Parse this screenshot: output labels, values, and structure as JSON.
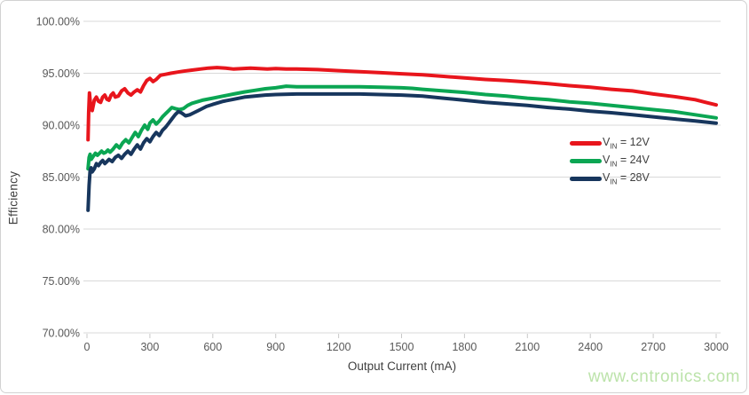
{
  "page": {
    "watermark": "www.cntronics.com"
  },
  "chart_data": {
    "type": "line",
    "title": "",
    "xlabel": "Output Current (mA)",
    "ylabel": "Efficiency",
    "xlim": [
      0,
      3000
    ],
    "ylim": [
      70,
      100
    ],
    "grid": "horizontal",
    "grid_color": "#d9d9d9",
    "tick_color": "#c8c8c8",
    "tick_label_color": "#595959",
    "legend_position": "inside-right-middle",
    "x_ticks": [
      0,
      300,
      600,
      900,
      1200,
      1500,
      1800,
      2100,
      2400,
      2700,
      3000
    ],
    "y_ticks": [
      100,
      95,
      90,
      85,
      80,
      75,
      70
    ],
    "y_tick_labels": [
      "100.00%",
      "95.00%",
      "90.00%",
      "85.00%",
      "80.00%",
      "75.00%",
      "70.00%"
    ],
    "series": [
      {
        "name": "VIN = 12V",
        "label_prefix": "V",
        "label_sub": "IN",
        "label_suffix": " = 12V",
        "color": "#e8151c",
        "points": [
          [
            5,
            88.6
          ],
          [
            8,
            91.2
          ],
          [
            12,
            93.1
          ],
          [
            18,
            91.7
          ],
          [
            25,
            91.4
          ],
          [
            35,
            92.4
          ],
          [
            45,
            92.7
          ],
          [
            55,
            92.3
          ],
          [
            65,
            92.2
          ],
          [
            75,
            92.7
          ],
          [
            85,
            92.9
          ],
          [
            95,
            92.5
          ],
          [
            105,
            92.4
          ],
          [
            115,
            92.9
          ],
          [
            125,
            93.1
          ],
          [
            135,
            92.7
          ],
          [
            150,
            92.8
          ],
          [
            165,
            93.3
          ],
          [
            180,
            93.5
          ],
          [
            195,
            93.1
          ],
          [
            210,
            92.9
          ],
          [
            225,
            93.2
          ],
          [
            240,
            93.4
          ],
          [
            255,
            93.2
          ],
          [
            270,
            93.8
          ],
          [
            285,
            94.3
          ],
          [
            300,
            94.5
          ],
          [
            315,
            94.2
          ],
          [
            330,
            94.4
          ],
          [
            350,
            94.8
          ],
          [
            375,
            94.9
          ],
          [
            400,
            95.0
          ],
          [
            430,
            95.1
          ],
          [
            460,
            95.2
          ],
          [
            500,
            95.3
          ],
          [
            540,
            95.4
          ],
          [
            580,
            95.5
          ],
          [
            620,
            95.55
          ],
          [
            660,
            95.5
          ],
          [
            700,
            95.4
          ],
          [
            740,
            95.45
          ],
          [
            780,
            95.5
          ],
          [
            820,
            95.45
          ],
          [
            860,
            95.4
          ],
          [
            900,
            95.45
          ],
          [
            950,
            95.4
          ],
          [
            1000,
            95.4
          ],
          [
            1100,
            95.35
          ],
          [
            1200,
            95.25
          ],
          [
            1300,
            95.15
          ],
          [
            1400,
            95.05
          ],
          [
            1500,
            94.95
          ],
          [
            1600,
            94.85
          ],
          [
            1700,
            94.7
          ],
          [
            1800,
            94.55
          ],
          [
            1900,
            94.4
          ],
          [
            2000,
            94.3
          ],
          [
            2100,
            94.15
          ],
          [
            2200,
            94.0
          ],
          [
            2300,
            93.8
          ],
          [
            2400,
            93.65
          ],
          [
            2500,
            93.45
          ],
          [
            2600,
            93.3
          ],
          [
            2700,
            93.0
          ],
          [
            2800,
            92.75
          ],
          [
            2900,
            92.45
          ],
          [
            2950,
            92.2
          ],
          [
            3000,
            91.95
          ]
        ]
      },
      {
        "name": "VIN = 24V",
        "label_prefix": "V",
        "label_sub": "IN",
        "label_suffix": " = 24V",
        "color": "#0ba653",
        "points": [
          [
            5,
            85.8
          ],
          [
            10,
            86.9
          ],
          [
            15,
            87.2
          ],
          [
            20,
            86.7
          ],
          [
            30,
            87.0
          ],
          [
            40,
            87.3
          ],
          [
            50,
            87.1
          ],
          [
            60,
            87.3
          ],
          [
            70,
            87.5
          ],
          [
            80,
            87.3
          ],
          [
            90,
            87.4
          ],
          [
            100,
            87.6
          ],
          [
            110,
            87.4
          ],
          [
            125,
            87.7
          ],
          [
            140,
            88.1
          ],
          [
            155,
            87.8
          ],
          [
            170,
            88.3
          ],
          [
            185,
            88.6
          ],
          [
            200,
            88.3
          ],
          [
            215,
            88.8
          ],
          [
            230,
            89.3
          ],
          [
            245,
            88.9
          ],
          [
            260,
            89.5
          ],
          [
            275,
            90.0
          ],
          [
            290,
            89.6
          ],
          [
            300,
            90.2
          ],
          [
            315,
            90.5
          ],
          [
            330,
            90.1
          ],
          [
            345,
            90.4
          ],
          [
            360,
            90.8
          ],
          [
            375,
            91.1
          ],
          [
            390,
            91.4
          ],
          [
            405,
            91.7
          ],
          [
            420,
            91.6
          ],
          [
            440,
            91.5
          ],
          [
            460,
            91.6
          ],
          [
            480,
            91.9
          ],
          [
            500,
            92.1
          ],
          [
            550,
            92.4
          ],
          [
            600,
            92.6
          ],
          [
            650,
            92.8
          ],
          [
            700,
            93.0
          ],
          [
            750,
            93.2
          ],
          [
            800,
            93.35
          ],
          [
            850,
            93.5
          ],
          [
            900,
            93.6
          ],
          [
            950,
            93.75
          ],
          [
            1000,
            93.7
          ],
          [
            1100,
            93.7
          ],
          [
            1200,
            93.7
          ],
          [
            1300,
            93.7
          ],
          [
            1400,
            93.65
          ],
          [
            1500,
            93.6
          ],
          [
            1550,
            93.55
          ],
          [
            1600,
            93.45
          ],
          [
            1700,
            93.3
          ],
          [
            1800,
            93.15
          ],
          [
            1900,
            92.95
          ],
          [
            2000,
            92.8
          ],
          [
            2100,
            92.6
          ],
          [
            2200,
            92.45
          ],
          [
            2300,
            92.25
          ],
          [
            2400,
            92.1
          ],
          [
            2500,
            91.9
          ],
          [
            2600,
            91.7
          ],
          [
            2700,
            91.5
          ],
          [
            2800,
            91.3
          ],
          [
            2900,
            91.0
          ],
          [
            3000,
            90.7
          ]
        ]
      },
      {
        "name": "VIN = 28V",
        "label_prefix": "V",
        "label_sub": "IN",
        "label_suffix": " = 28V",
        "color": "#17365d",
        "points": [
          [
            5,
            81.8
          ],
          [
            10,
            84.2
          ],
          [
            15,
            85.6
          ],
          [
            20,
            85.9
          ],
          [
            25,
            85.5
          ],
          [
            35,
            85.8
          ],
          [
            45,
            86.3
          ],
          [
            55,
            86.1
          ],
          [
            65,
            86.4
          ],
          [
            75,
            86.6
          ],
          [
            85,
            86.3
          ],
          [
            95,
            86.5
          ],
          [
            105,
            86.7
          ],
          [
            120,
            86.5
          ],
          [
            135,
            86.9
          ],
          [
            150,
            87.1
          ],
          [
            165,
            86.8
          ],
          [
            180,
            87.2
          ],
          [
            195,
            87.5
          ],
          [
            210,
            87.2
          ],
          [
            225,
            87.7
          ],
          [
            240,
            88.1
          ],
          [
            255,
            87.7
          ],
          [
            270,
            88.3
          ],
          [
            285,
            88.7
          ],
          [
            300,
            88.4
          ],
          [
            315,
            88.9
          ],
          [
            330,
            89.3
          ],
          [
            345,
            89.0
          ],
          [
            360,
            89.5
          ],
          [
            375,
            89.8
          ],
          [
            390,
            90.2
          ],
          [
            405,
            90.6
          ],
          [
            420,
            91.0
          ],
          [
            435,
            91.3
          ],
          [
            450,
            91.2
          ],
          [
            470,
            90.9
          ],
          [
            490,
            91.0
          ],
          [
            510,
            91.2
          ],
          [
            540,
            91.5
          ],
          [
            570,
            91.8
          ],
          [
            600,
            92.0
          ],
          [
            650,
            92.3
          ],
          [
            700,
            92.5
          ],
          [
            750,
            92.7
          ],
          [
            800,
            92.8
          ],
          [
            850,
            92.9
          ],
          [
            900,
            92.95
          ],
          [
            1000,
            93.0
          ],
          [
            1100,
            93.0
          ],
          [
            1200,
            93.0
          ],
          [
            1300,
            93.0
          ],
          [
            1400,
            92.95
          ],
          [
            1500,
            92.9
          ],
          [
            1600,
            92.8
          ],
          [
            1700,
            92.6
          ],
          [
            1800,
            92.4
          ],
          [
            1900,
            92.2
          ],
          [
            2000,
            92.05
          ],
          [
            2100,
            91.9
          ],
          [
            2200,
            91.7
          ],
          [
            2300,
            91.55
          ],
          [
            2400,
            91.35
          ],
          [
            2500,
            91.2
          ],
          [
            2600,
            91.0
          ],
          [
            2700,
            90.8
          ],
          [
            2800,
            90.6
          ],
          [
            2900,
            90.4
          ],
          [
            3000,
            90.2
          ]
        ]
      }
    ]
  }
}
